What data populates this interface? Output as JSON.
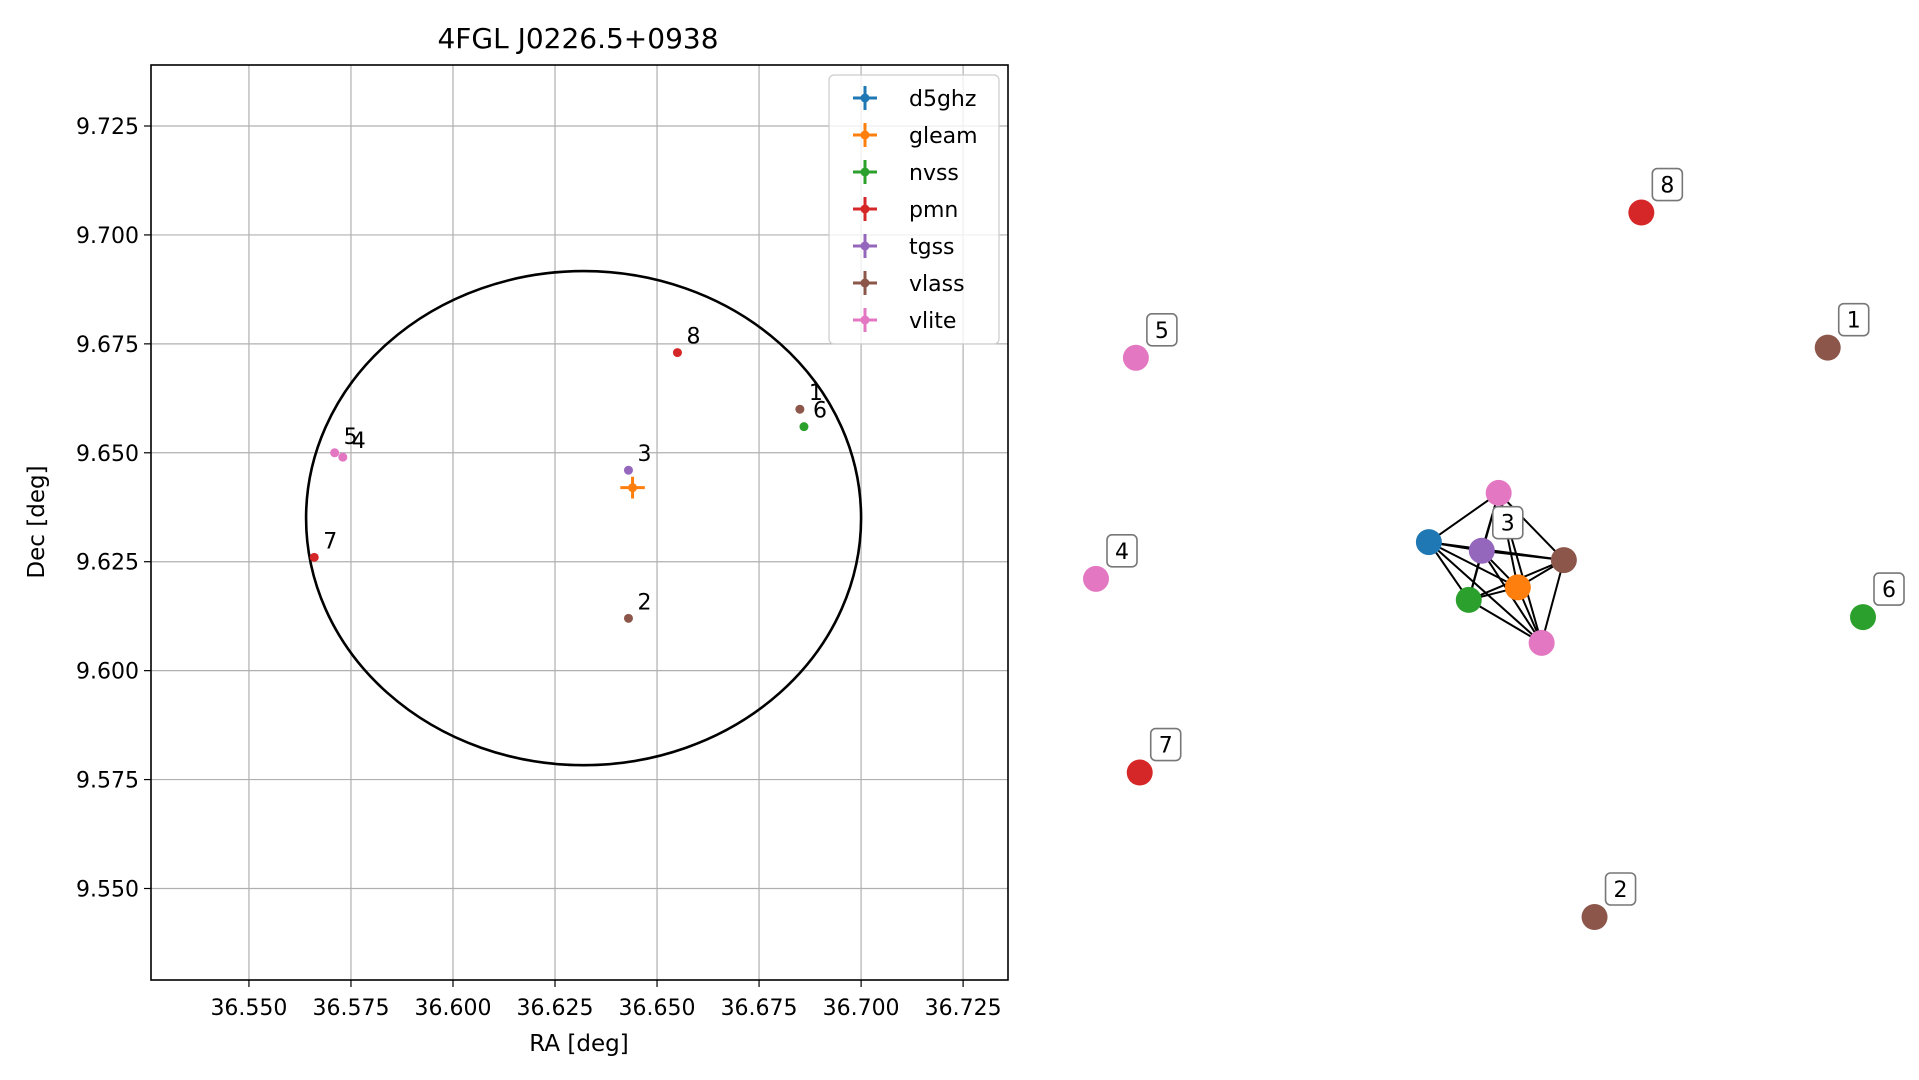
{
  "chart_data": [
    {
      "type": "scatter",
      "title": "4FGL J0226.5+0938",
      "xlabel": "RA [deg]",
      "ylabel": "Dec [deg]",
      "xlim": [
        36.526,
        36.736
      ],
      "ylim": [
        9.529,
        9.739
      ],
      "xticks": [
        "36.550",
        "36.575",
        "36.600",
        "36.625",
        "36.650",
        "36.675",
        "36.700",
        "36.725"
      ],
      "yticks": [
        "9.550",
        "9.575",
        "9.600",
        "9.625",
        "9.650",
        "9.675",
        "9.700",
        "9.725"
      ],
      "grid": true,
      "legend_position": "upper right",
      "ellipse": {
        "center": [
          36.632,
          9.635
        ],
        "semi_axis_ra": 0.068,
        "semi_axis_dec": 0.0567,
        "color": "#000000"
      },
      "series": [
        {
          "name": "d5ghz",
          "color": "#1f77b4",
          "points": []
        },
        {
          "name": "gleam",
          "color": "#ff7f0e",
          "points": [
            {
              "ra": 36.644,
              "dec": 9.642,
              "err_ra": 0.003,
              "err_dec": 0.0025
            }
          ]
        },
        {
          "name": "nvss",
          "color": "#2ca02c",
          "points": [
            {
              "ra": 36.686,
              "dec": 9.656,
              "label": "6"
            }
          ]
        },
        {
          "name": "pmn",
          "color": "#d62728",
          "points": [
            {
              "ra": 36.655,
              "dec": 9.673,
              "label": "8"
            },
            {
              "ra": 36.566,
              "dec": 9.626,
              "label": "7"
            }
          ]
        },
        {
          "name": "tgss",
          "color": "#9467bd",
          "points": [
            {
              "ra": 36.643,
              "dec": 9.646,
              "label": "3"
            }
          ]
        },
        {
          "name": "vlass",
          "color": "#8c564b",
          "points": [
            {
              "ra": 36.685,
              "dec": 9.66,
              "label": "1"
            },
            {
              "ra": 36.643,
              "dec": 9.612,
              "label": "2"
            }
          ]
        },
        {
          "name": "vlite",
          "color": "#e377c2",
          "points": [
            {
              "ra": 36.571,
              "dec": 9.65,
              "label": "5"
            },
            {
              "ra": 36.573,
              "dec": 9.649,
              "label": "4"
            }
          ]
        }
      ]
    },
    {
      "type": "network",
      "nodes": [
        {
          "label": "8",
          "color": "#d62728",
          "x": 0.711,
          "y": 0.902
        },
        {
          "label": "1",
          "color": "#8c564b",
          "x": 0.954,
          "y": 0.729
        },
        {
          "label": "5",
          "color": "#e377c2",
          "x": 0.052,
          "y": 0.716
        },
        {
          "label": "4",
          "color": "#e377c2",
          "x": 0.0,
          "y": 0.433
        },
        {
          "label": "6",
          "color": "#2ca02c",
          "x": 1.0,
          "y": 0.384
        },
        {
          "label": "7",
          "color": "#d62728",
          "x": 0.057,
          "y": 0.185
        },
        {
          "label": "2",
          "color": "#8c564b",
          "x": 0.65,
          "y": 0.0
        },
        {
          "label": "3",
          "color": "#9467bd",
          "x": 0.503,
          "y": 0.469
        }
      ],
      "cluster": [
        {
          "color": "#1f77b4",
          "x": 0.434,
          "y": 0.48
        },
        {
          "color": "#e377c2",
          "x": 0.525,
          "y": 0.543
        },
        {
          "color": "#ff7f0e",
          "x": 0.55,
          "y": 0.422
        },
        {
          "color": "#8c564b",
          "x": 0.61,
          "y": 0.457
        },
        {
          "color": "#2ca02c",
          "x": 0.486,
          "y": 0.406
        },
        {
          "color": "#e377c2",
          "x": 0.581,
          "y": 0.351
        }
      ],
      "edges": [
        [
          -1,
          0
        ],
        [
          -1,
          1
        ],
        [
          -1,
          2
        ],
        [
          -1,
          3
        ],
        [
          -1,
          4
        ],
        [
          -1,
          5
        ],
        [
          0,
          1
        ],
        [
          0,
          2
        ],
        [
          0,
          3
        ],
        [
          0,
          4
        ],
        [
          0,
          5
        ],
        [
          1,
          2
        ],
        [
          1,
          3
        ],
        [
          1,
          4
        ],
        [
          1,
          5
        ],
        [
          2,
          3
        ],
        [
          2,
          4
        ],
        [
          2,
          5
        ],
        [
          3,
          4
        ],
        [
          3,
          5
        ],
        [
          4,
          5
        ]
      ]
    }
  ]
}
